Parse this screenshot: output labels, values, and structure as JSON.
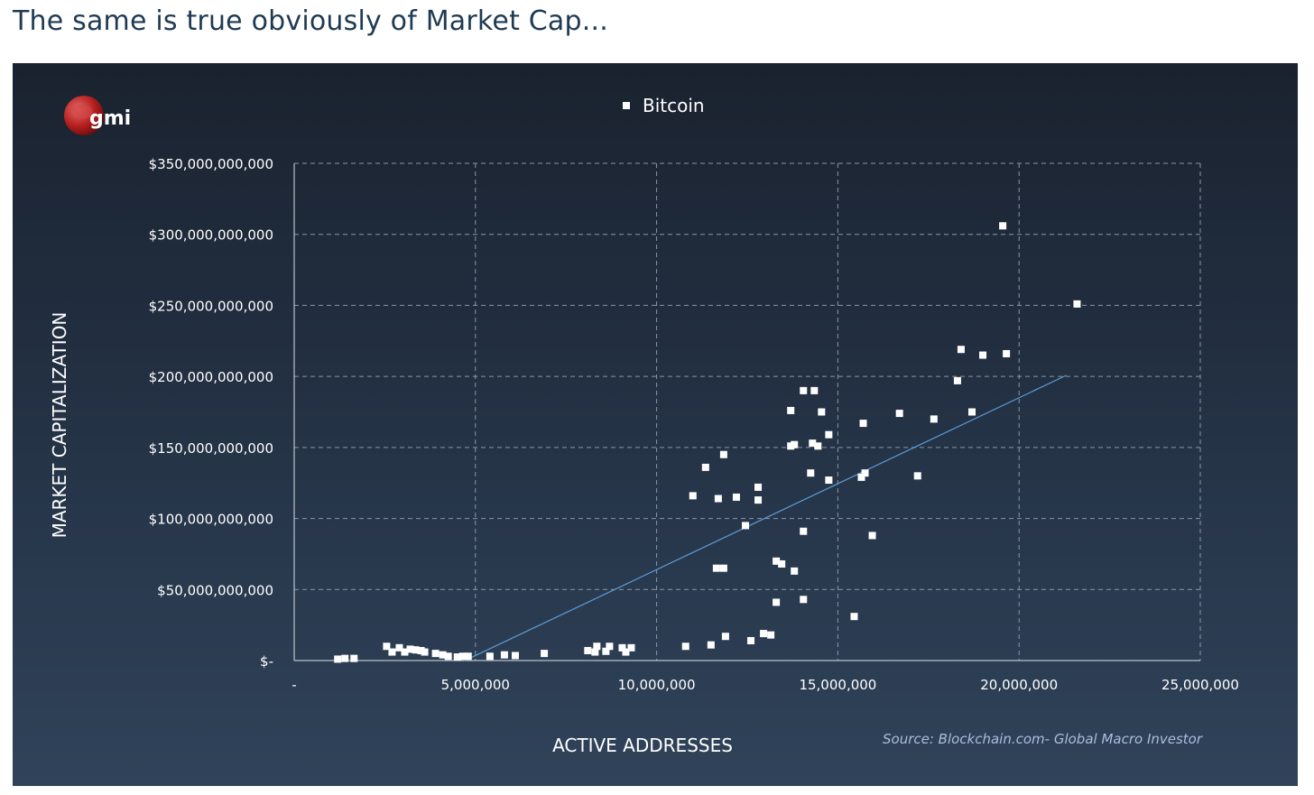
{
  "heading": "The same is true obviously of Market Cap...",
  "logo": {
    "text": "gmi"
  },
  "source": "Source: Blockchain.com- Global Macro Investor",
  "colors": {
    "panel_top": "#1a222f",
    "panel_bottom": "#30435a",
    "points": "#ffffff",
    "trendline": "#5b9bd5",
    "grid": "#8a97a8",
    "source_text": "#a7bedb"
  },
  "chart_data": {
    "type": "scatter",
    "title": "",
    "legend": [
      "Bitcoin"
    ],
    "legend_position": "top-center",
    "xlabel": "ACTIVE ADDRESSES",
    "ylabel": "MARKET CAPITALIZATION",
    "xlim": [
      0,
      25000000
    ],
    "ylim": [
      0,
      350000000000
    ],
    "grid": true,
    "x_ticks": [
      {
        "value": 0,
        "label": "-"
      },
      {
        "value": 5000000,
        "label": "5,000,000"
      },
      {
        "value": 10000000,
        "label": "10,000,000"
      },
      {
        "value": 15000000,
        "label": "15,000,000"
      },
      {
        "value": 20000000,
        "label": "20,000,000"
      },
      {
        "value": 25000000,
        "label": "25,000,000"
      }
    ],
    "y_ticks": [
      {
        "value": 0,
        "label": "$-"
      },
      {
        "value": 50000000000,
        "label": "$50,000,000,000"
      },
      {
        "value": 100000000000,
        "label": "$100,000,000,000"
      },
      {
        "value": 150000000000,
        "label": "$150,000,000,000"
      },
      {
        "value": 200000000000,
        "label": "$200,000,000,000"
      },
      {
        "value": 250000000000,
        "label": "$250,000,000,000"
      },
      {
        "value": 300000000000,
        "label": "$300,000,000,000"
      },
      {
        "value": 350000000000,
        "label": "$350,000,000,000"
      }
    ],
    "series": [
      {
        "name": "Bitcoin",
        "points": [
          [
            1200000,
            1000000000
          ],
          [
            1400000,
            1500000000
          ],
          [
            1650000,
            1500000000
          ],
          [
            2550000,
            10000000000
          ],
          [
            2700000,
            6000000000
          ],
          [
            2900000,
            9000000000
          ],
          [
            3050000,
            6000000000
          ],
          [
            3200000,
            8000000000
          ],
          [
            3350000,
            7500000000
          ],
          [
            3500000,
            7000000000
          ],
          [
            3600000,
            6000000000
          ],
          [
            3900000,
            5000000000
          ],
          [
            4100000,
            4000000000
          ],
          [
            4250000,
            3000000000
          ],
          [
            4500000,
            2500000000
          ],
          [
            4650000,
            3000000000
          ],
          [
            4800000,
            3000000000
          ],
          [
            5400000,
            3000000000
          ],
          [
            5800000,
            4000000000
          ],
          [
            6100000,
            3500000000
          ],
          [
            6900000,
            5000000000
          ],
          [
            8100000,
            7000000000
          ],
          [
            8300000,
            6000000000
          ],
          [
            8350000,
            10000000000
          ],
          [
            8600000,
            6500000000
          ],
          [
            8700000,
            10000000000
          ],
          [
            9050000,
            9000000000
          ],
          [
            9150000,
            6000000000
          ],
          [
            9300000,
            9000000000
          ],
          [
            10800000,
            10000000000
          ],
          [
            11000000,
            116000000000
          ],
          [
            11350000,
            136000000000
          ],
          [
            11500000,
            11000000000
          ],
          [
            11650000,
            65000000000
          ],
          [
            11700000,
            114000000000
          ],
          [
            11850000,
            145000000000
          ],
          [
            11850000,
            65000000000
          ],
          [
            11900000,
            17000000000
          ],
          [
            12200000,
            115000000000
          ],
          [
            12450000,
            95000000000
          ],
          [
            12600000,
            14000000000
          ],
          [
            12800000,
            122000000000
          ],
          [
            12800000,
            113000000000
          ],
          [
            12950000,
            19000000000
          ],
          [
            13150000,
            18000000000
          ],
          [
            13300000,
            70000000000
          ],
          [
            13300000,
            41000000000
          ],
          [
            13450000,
            68000000000
          ],
          [
            13700000,
            151000000000
          ],
          [
            13700000,
            176000000000
          ],
          [
            13800000,
            63000000000
          ],
          [
            13800000,
            152000000000
          ],
          [
            14050000,
            190000000000
          ],
          [
            14050000,
            91000000000
          ],
          [
            14050000,
            43000000000
          ],
          [
            14250000,
            132000000000
          ],
          [
            14300000,
            153000000000
          ],
          [
            14350000,
            190000000000
          ],
          [
            14450000,
            151000000000
          ],
          [
            14550000,
            175000000000
          ],
          [
            14750000,
            159000000000
          ],
          [
            14750000,
            127000000000
          ],
          [
            15450000,
            31000000000
          ],
          [
            15650000,
            129000000000
          ],
          [
            15700000,
            167000000000
          ],
          [
            15750000,
            132000000000
          ],
          [
            15950000,
            88000000000
          ],
          [
            16700000,
            174000000000
          ],
          [
            17200000,
            130000000000
          ],
          [
            17650000,
            170000000000
          ],
          [
            18300000,
            197000000000
          ],
          [
            18400000,
            219000000000
          ],
          [
            18700000,
            175000000000
          ],
          [
            19000000,
            215000000000
          ],
          [
            19550000,
            306000000000
          ],
          [
            19650000,
            216000000000
          ],
          [
            21600000,
            251000000000
          ]
        ]
      }
    ],
    "trendline": {
      "x1": 4700000,
      "x2": 21300000,
      "slope": 12100,
      "intercept": -57000000000
    }
  }
}
